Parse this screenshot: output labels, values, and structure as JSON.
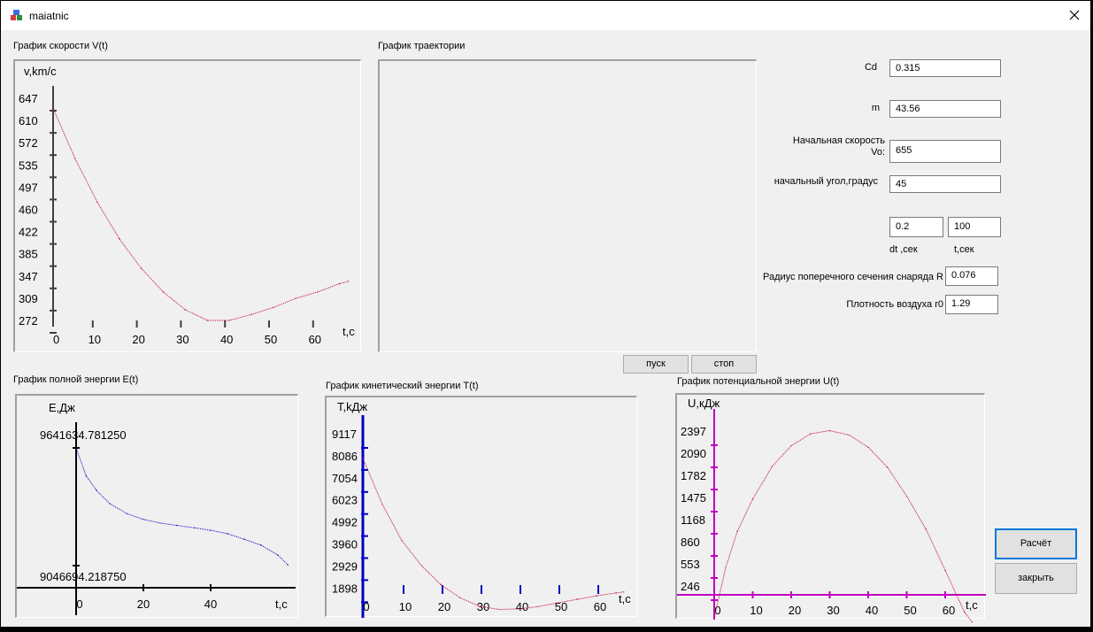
{
  "window": {
    "title": "maiatnic"
  },
  "velocity": {
    "title": "График скорости V(t)",
    "chart_data": {
      "type": "line",
      "ylabel": "v,km/c",
      "xlabel": "t,c",
      "yticks": [
        "647",
        "610",
        "572",
        "535",
        "497",
        "460",
        "422",
        "385",
        "347",
        "309",
        "272"
      ],
      "xticks": [
        "0",
        "10",
        "20",
        "30",
        "40",
        "50",
        "60"
      ],
      "x": [
        0,
        5,
        10,
        15,
        20,
        25,
        30,
        35,
        40,
        45,
        50,
        55,
        60,
        65,
        67
      ],
      "y": [
        630,
        545,
        472,
        410,
        360,
        320,
        290,
        272,
        272,
        282,
        294,
        309,
        320,
        334,
        338
      ],
      "color": "#c00040"
    }
  },
  "trajectory": {
    "title": "График траектории"
  },
  "energy": {
    "title": "График полной энергии E(t)",
    "chart_data": {
      "type": "line",
      "ylabel": "E,Дж",
      "xlabel": "t,c",
      "ymax_label": "9641634.781250",
      "ymin_label": "9046694.218750",
      "xticks": [
        "0",
        "20",
        "40"
      ],
      "x": [
        0,
        3,
        6,
        10,
        15,
        20,
        25,
        30,
        35,
        40,
        45,
        50,
        55,
        60,
        63
      ],
      "y": [
        9641634,
        9500000,
        9428000,
        9360000,
        9310000,
        9280000,
        9262000,
        9250000,
        9238000,
        9225000,
        9208000,
        9180000,
        9150000,
        9100000,
        9050000
      ],
      "color": "#0000c0"
    }
  },
  "kinetic": {
    "title": "График кинетический энергии T(t)",
    "chart_data": {
      "type": "line",
      "ylabel": "T,kДж",
      "xlabel": "t,c",
      "yticks": [
        "9117",
        "8086",
        "7054",
        "6023",
        "4992",
        "3960",
        "2929",
        "1898"
      ],
      "xticks": [
        "0",
        "10",
        "20",
        "30",
        "40",
        "50",
        "60"
      ],
      "x": [
        0,
        5,
        10,
        15,
        20,
        25,
        30,
        35,
        40,
        45,
        50,
        55,
        60,
        65,
        67
      ],
      "y": [
        8630,
        6480,
        4780,
        3620,
        2720,
        2100,
        1700,
        1560,
        1585,
        1690,
        1860,
        2030,
        2190,
        2330,
        2380
      ],
      "color": "#c00040"
    }
  },
  "potential": {
    "title": "График потенциальной энергии U(t)",
    "chart_data": {
      "type": "line",
      "ylabel": "U,кДж",
      "xlabel": "t,c",
      "yticks": [
        "2397",
        "2090",
        "1782",
        "1475",
        "1168",
        "860",
        "553",
        "246"
      ],
      "xticks": [
        "0",
        "10",
        "20",
        "30",
        "40",
        "50",
        "60"
      ],
      "x": [
        0,
        3,
        6,
        10,
        15,
        20,
        25,
        30,
        35,
        40,
        45,
        50,
        55,
        60,
        65,
        67
      ],
      "y": [
        0,
        700,
        1200,
        1650,
        2100,
        2390,
        2555,
        2600,
        2540,
        2370,
        2090,
        1690,
        1230,
        660,
        80,
        -60
      ],
      "color": "#c00040"
    }
  },
  "form": {
    "cd_label": "Cd",
    "cd_value": "0.315",
    "m_label": "m",
    "m_value": "43.56",
    "v0_label_1": "Начальная скорость",
    "v0_label_2": "Vo:",
    "v0_value": "655",
    "angle_label": "начальный угол,градус",
    "angle_value": "45",
    "dt_value": "0.2",
    "t_value": "100",
    "dt_label": "dt ,сек",
    "t_label": "t,сек",
    "radius_label": "Радиус поперечного сечения снаряда R",
    "radius_value": "0.076",
    "density_label": "Плотность воздуха r0",
    "density_value": "1.29"
  },
  "buttons": {
    "start": "пуск",
    "stop": "стоп",
    "calc": "Расчёт",
    "close": "закрыть"
  }
}
